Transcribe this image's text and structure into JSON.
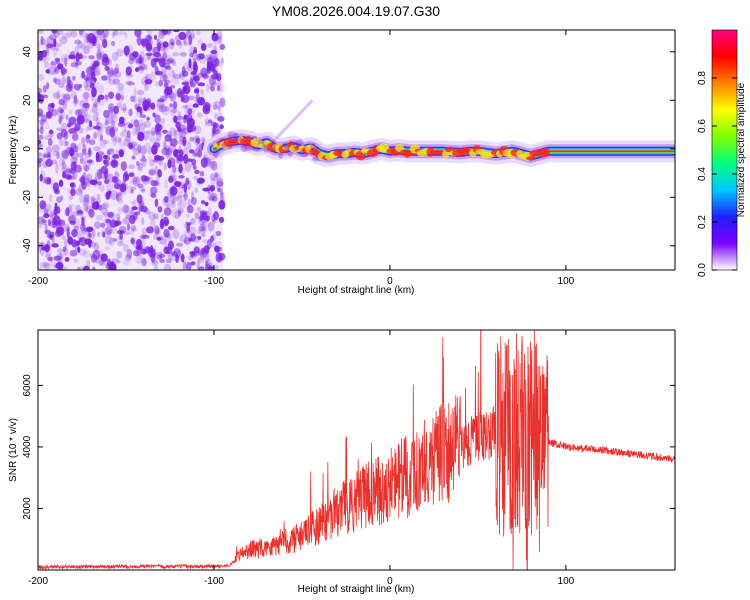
{
  "title": "YM08.2026.004.19.07.G30",
  "colors": {
    "snr_line": "#e8302c",
    "scatter_purple": "#7a1fe0",
    "axis": "#000000"
  },
  "colorbar": {
    "label": "Normalized spectral amplitude",
    "ticks": [
      "0.0",
      "0.2",
      "0.4",
      "0.6",
      "0.8"
    ],
    "range": [
      0,
      1
    ],
    "stops": [
      "#ffffff",
      "#7a00ff",
      "#2020ff",
      "#00c8ff",
      "#00ff80",
      "#80ff00",
      "#ffff00",
      "#ff8000",
      "#ff0000",
      "#ff0080"
    ]
  },
  "chart_data": [
    {
      "type": "heatmap",
      "title": "YM08.2026.004.19.07.G30",
      "xlabel": "Height of straight line (km)",
      "ylabel": "Frequency (Hz)",
      "xlim": [
        -200,
        162
      ],
      "ylim": [
        -50,
        49
      ],
      "xticks": [
        "-200",
        "-100",
        "0",
        "100"
      ],
      "yticks": [
        "40",
        "20",
        "0",
        "-20",
        "-40"
      ],
      "noise_region_km": [
        -200,
        -95
      ],
      "ridge_start_km": -100,
      "ridge_freq_hz": [
        [
          -100,
          0
        ],
        [
          -95,
          2
        ],
        [
          -90,
          3
        ],
        [
          -85,
          3.5
        ],
        [
          -80,
          3
        ],
        [
          -75,
          1.5
        ],
        [
          -70,
          2.5
        ],
        [
          -65,
          0
        ],
        [
          -60,
          0
        ],
        [
          -55,
          1
        ],
        [
          -50,
          -0.5
        ],
        [
          -45,
          0.5
        ],
        [
          -40,
          -2
        ],
        [
          -35,
          -3
        ],
        [
          -30,
          -2
        ],
        [
          -25,
          -2
        ],
        [
          -20,
          -1.5
        ],
        [
          -15,
          -2
        ],
        [
          -10,
          -1
        ],
        [
          -5,
          0
        ],
        [
          0,
          -1
        ],
        [
          5,
          -0.5
        ],
        [
          10,
          -1
        ],
        [
          20,
          -1
        ],
        [
          30,
          -1
        ],
        [
          40,
          -1.5
        ],
        [
          45,
          -1
        ],
        [
          50,
          -1
        ],
        [
          60,
          -2
        ],
        [
          65,
          -1.5
        ],
        [
          70,
          -1
        ],
        [
          75,
          -2
        ],
        [
          80,
          -3
        ],
        [
          85,
          -2
        ],
        [
          90,
          -1
        ],
        [
          100,
          -1
        ],
        [
          120,
          -1
        ],
        [
          140,
          -1
        ],
        [
          162,
          -1
        ]
      ]
    },
    {
      "type": "line",
      "xlabel": "Height of straight line (km)",
      "ylabel": "SNR (10 * v/v)",
      "xlim": [
        -200,
        162
      ],
      "ylim": [
        0,
        7800
      ],
      "xticks": [
        "-200",
        "-100",
        "0",
        "100"
      ],
      "yticks": [
        "2000",
        "4000",
        "6000"
      ],
      "series": [
        {
          "name": "SNR",
          "envelope_x": [
            -200,
            -150,
            -100,
            -92,
            -88,
            -84,
            -80,
            -75,
            -70,
            -60,
            -50,
            -40,
            -30,
            -20,
            -10,
            0,
            10,
            20,
            30,
            40,
            50,
            60,
            70,
            80,
            90,
            100,
            120,
            140,
            162
          ],
          "envelope_mean": [
            100,
            110,
            120,
            130,
            300,
            600,
            650,
            700,
            750,
            900,
            1100,
            1500,
            1900,
            2200,
            2500,
            2750,
            3050,
            3400,
            3800,
            4100,
            4300,
            4450,
            4350,
            4300,
            4150,
            4000,
            3900,
            3750,
            3600
          ],
          "spikes": [
            [
              -45,
              3200
            ],
            [
              -25,
              4300
            ],
            [
              -18,
              3600
            ],
            [
              -8,
              3600
            ],
            [
              65,
              5800
            ],
            [
              68,
              6500
            ],
            [
              72,
              7700
            ],
            [
              75,
              7600
            ],
            [
              78,
              7200
            ],
            [
              82,
              7800
            ],
            [
              70,
              0
            ],
            [
              78,
              0
            ]
          ]
        }
      ]
    }
  ]
}
